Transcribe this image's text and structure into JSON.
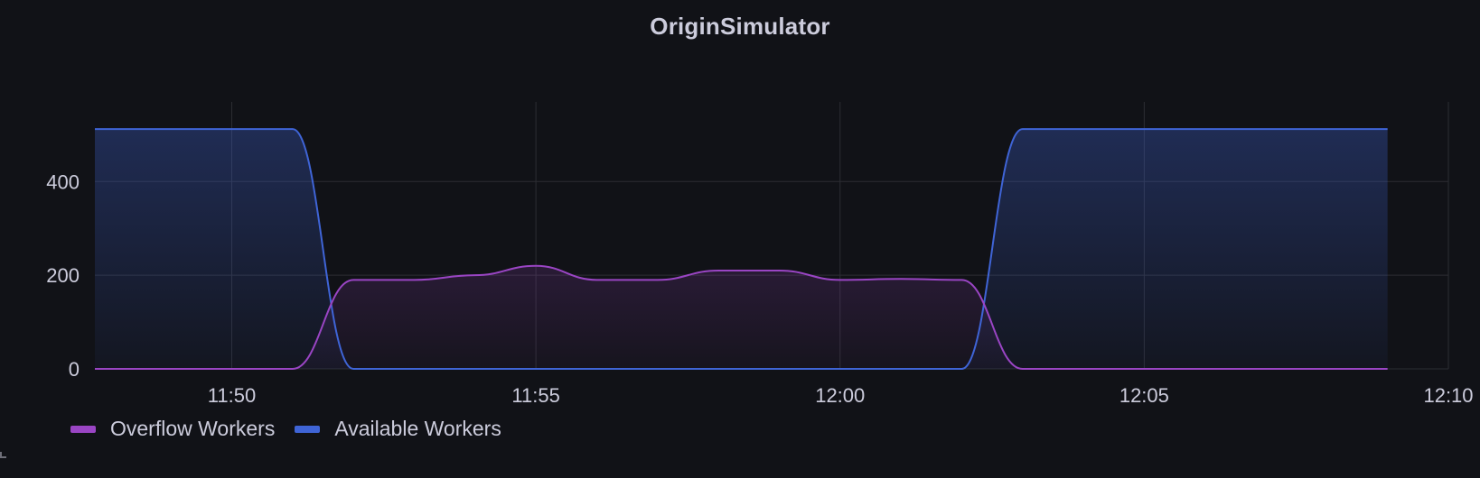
{
  "panel": {
    "title": "OriginSimulator"
  },
  "chart_data": {
    "type": "area",
    "title": "OriginSimulator",
    "xlabel": "",
    "ylabel": "",
    "x_ticks": [
      "11:50",
      "11:55",
      "12:00",
      "12:05",
      "12:10"
    ],
    "y_ticks": [
      0,
      200,
      400
    ],
    "xlim": [
      "11:47:45",
      "12:10:00"
    ],
    "ylim": [
      0,
      570
    ],
    "grid": true,
    "legend_position": "bottom-left",
    "series": [
      {
        "name": "Overflow Workers",
        "color": "#9a45c4",
        "points": [
          [
            "11:47:45",
            0
          ],
          [
            "11:50:00",
            0
          ],
          [
            "11:51:00",
            0
          ],
          [
            "11:52:00",
            190
          ],
          [
            "11:53:00",
            190
          ],
          [
            "11:54:00",
            200
          ],
          [
            "11:55:00",
            220
          ],
          [
            "11:56:00",
            190
          ],
          [
            "11:57:00",
            190
          ],
          [
            "11:58:00",
            210
          ],
          [
            "11:59:00",
            210
          ],
          [
            "12:00:00",
            190
          ],
          [
            "12:01:00",
            192
          ],
          [
            "12:02:00",
            190
          ],
          [
            "12:03:00",
            0
          ],
          [
            "12:04:00",
            0
          ],
          [
            "12:09:00",
            0
          ]
        ]
      },
      {
        "name": "Available Workers",
        "color": "#3f64d6",
        "points": [
          [
            "11:47:45",
            512
          ],
          [
            "11:50:00",
            512
          ],
          [
            "11:51:00",
            512
          ],
          [
            "11:52:00",
            0
          ],
          [
            "11:53:00",
            0
          ],
          [
            "12:02:00",
            0
          ],
          [
            "12:03:00",
            512
          ],
          [
            "12:04:00",
            512
          ],
          [
            "12:09:00",
            512
          ]
        ]
      }
    ]
  },
  "legend": {
    "items": [
      {
        "label": "Overflow Workers",
        "color": "#9a45c4"
      },
      {
        "label": "Available Workers",
        "color": "#3f64d6"
      }
    ]
  }
}
